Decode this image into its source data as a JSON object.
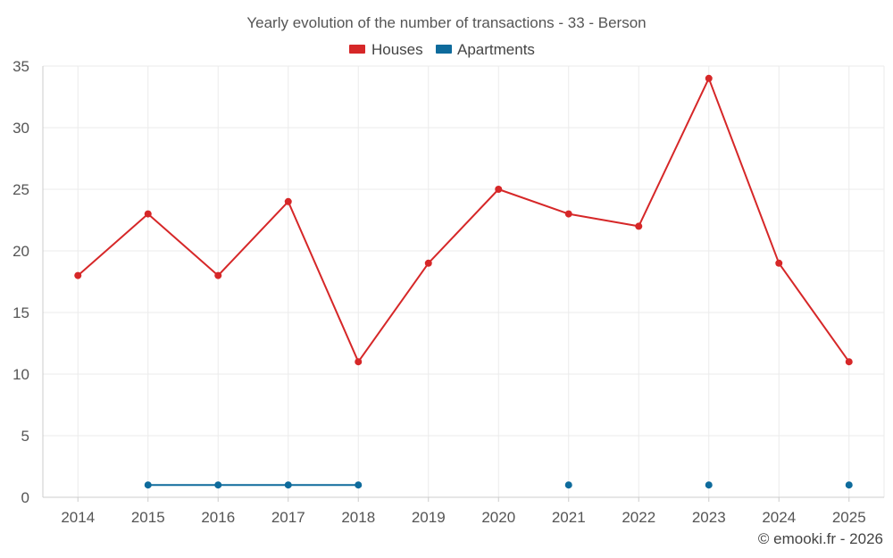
{
  "chart_data": {
    "type": "line",
    "title": "Yearly evolution of the number of transactions - 33 - Berson",
    "categories": [
      "2014",
      "2015",
      "2016",
      "2017",
      "2018",
      "2019",
      "2020",
      "2021",
      "2022",
      "2023",
      "2024",
      "2025"
    ],
    "ylim": [
      0,
      35
    ],
    "yticks": [
      0,
      5,
      10,
      15,
      20,
      25,
      30,
      35
    ],
    "grid": true,
    "legend_position": "top-center",
    "series": [
      {
        "name": "Houses",
        "color": "#d62728",
        "values": [
          18,
          23,
          18,
          24,
          11,
          19,
          25,
          23,
          22,
          34,
          19,
          11
        ]
      },
      {
        "name": "Apartments",
        "color": "#0e6b9c",
        "values": [
          null,
          1,
          1,
          1,
          1,
          null,
          null,
          1,
          null,
          1,
          null,
          1
        ]
      }
    ]
  },
  "credit": "© emooki.fr - 2026"
}
